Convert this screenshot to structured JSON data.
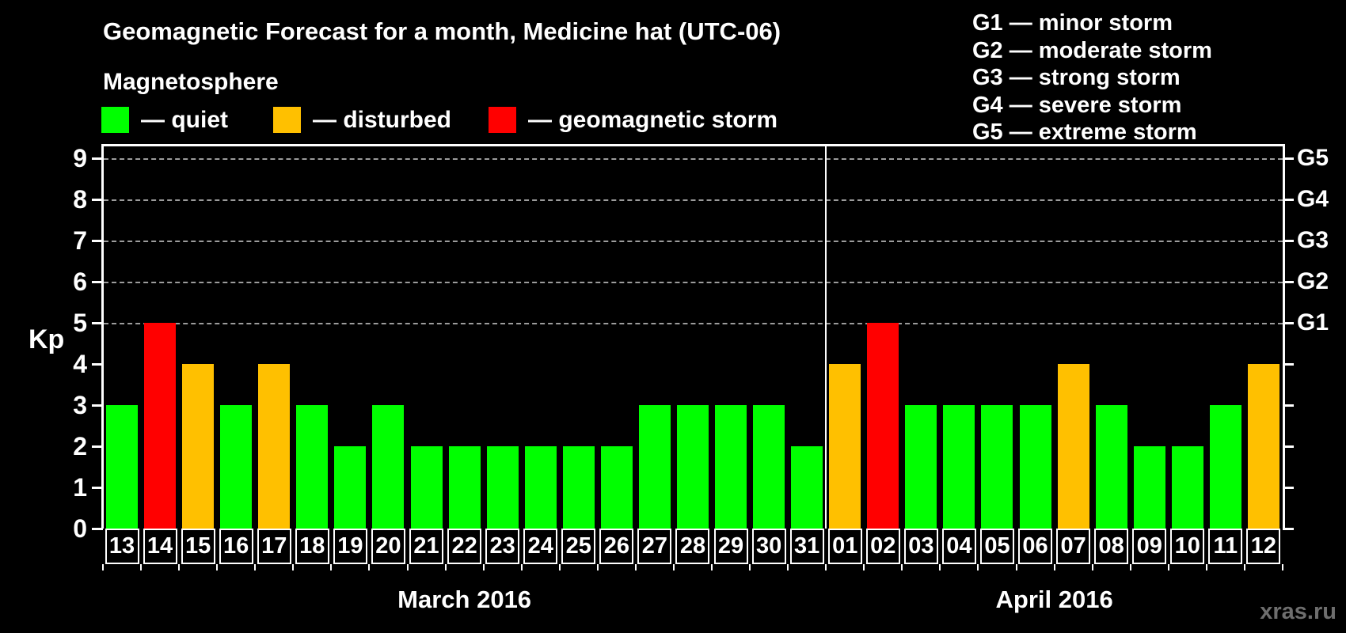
{
  "title": "Geomagnetic Forecast for a month, Medicine hat (UTC-06)",
  "subtitle": "Magnetosphere",
  "legend": {
    "quiet": "— quiet",
    "disturbed": "— disturbed",
    "storm": "— geomagnetic storm"
  },
  "g_legend": [
    "G1 — minor storm",
    "G2 — moderate storm",
    "G3 — strong storm",
    "G4 — severe storm",
    "G5 — extreme storm"
  ],
  "colors": {
    "quiet": "#00ff00",
    "disturbed": "#ffc000",
    "storm": "#ff0000",
    "axis": "#ffffff",
    "grid": "#9c9c9c",
    "background": "#000000"
  },
  "y_axis": {
    "label": "Kp",
    "ticks": [
      0,
      1,
      2,
      3,
      4,
      5,
      6,
      7,
      8,
      9
    ],
    "grid_levels": [
      5,
      6,
      7,
      8,
      9
    ]
  },
  "right_axis": {
    "labels": {
      "5": "G1",
      "6": "G2",
      "7": "G3",
      "8": "G4",
      "9": "G5"
    }
  },
  "watermark": "xras.ru",
  "chart_data": {
    "type": "bar",
    "title": "Geomagnetic Forecast for a month, Medicine hat (UTC-06)",
    "xlabel": "",
    "ylabel": "Kp",
    "ylim": [
      0,
      9.35
    ],
    "grid": "dashed horizontal at Kp 5-9 (G1-G5)",
    "legend_position": "top",
    "months": [
      {
        "label": "March 2016",
        "days": [
          "13",
          "14",
          "15",
          "16",
          "17",
          "18",
          "19",
          "20",
          "21",
          "22",
          "23",
          "24",
          "25",
          "26",
          "27",
          "28",
          "29",
          "30",
          "31"
        ],
        "kp": [
          3,
          5,
          4,
          3,
          4,
          3,
          2,
          3,
          2,
          2,
          2,
          2,
          2,
          2,
          3,
          3,
          3,
          3,
          2
        ],
        "status": [
          "quiet",
          "storm",
          "disturbed",
          "quiet",
          "disturbed",
          "quiet",
          "quiet",
          "quiet",
          "quiet",
          "quiet",
          "quiet",
          "quiet",
          "quiet",
          "quiet",
          "quiet",
          "quiet",
          "quiet",
          "quiet",
          "quiet"
        ]
      },
      {
        "label": "April 2016",
        "days": [
          "01",
          "02",
          "03",
          "04",
          "05",
          "06",
          "07",
          "08",
          "09",
          "10",
          "11",
          "12"
        ],
        "kp": [
          4,
          5,
          3,
          3,
          3,
          3,
          4,
          3,
          2,
          2,
          3,
          4
        ],
        "status": [
          "disturbed",
          "storm",
          "quiet",
          "quiet",
          "quiet",
          "quiet",
          "disturbed",
          "quiet",
          "quiet",
          "quiet",
          "quiet",
          "disturbed"
        ]
      }
    ]
  }
}
